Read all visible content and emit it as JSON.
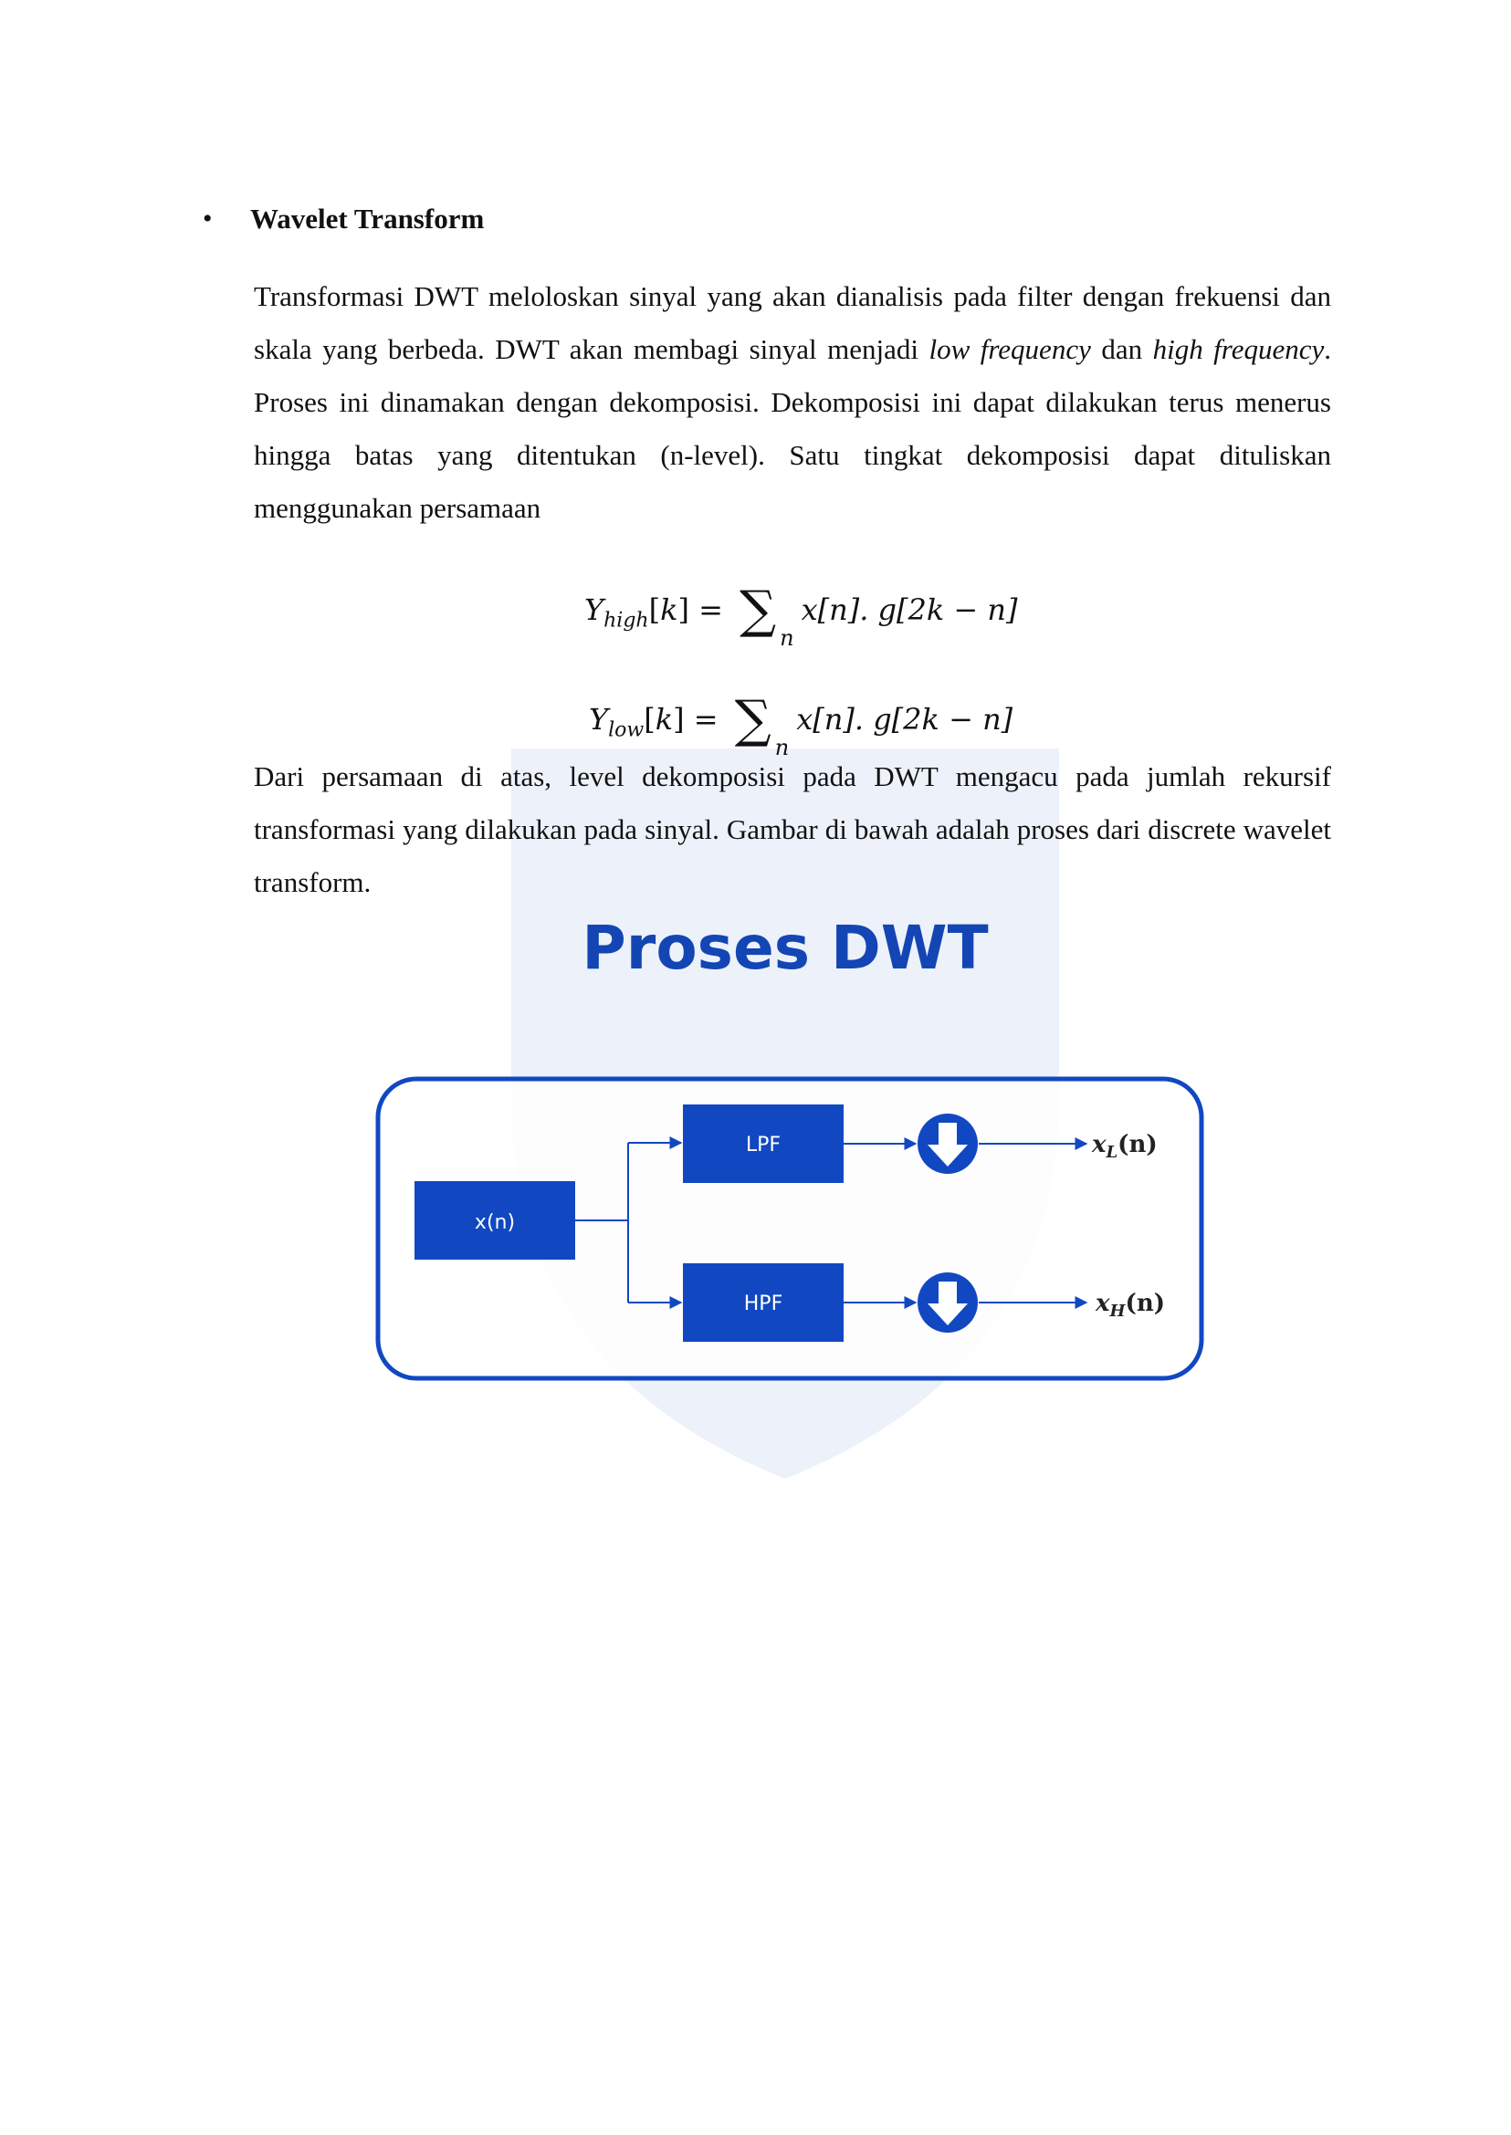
{
  "section": {
    "bullet": "•",
    "heading": "Wavelet Transform"
  },
  "paragraph1": {
    "part1": "Transformasi DWT meloloskan sinyal yang akan dianalisis pada filter dengan frekuensi dan skala yang berbeda. DWT akan membagi sinyal menjadi ",
    "em1": "low frequency",
    "part2": " dan ",
    "em2": "high frequency",
    "part3": ". Proses ini dinamakan dengan dekomposisi. Dekomposisi ini dapat dilakukan terus menerus hingga batas yang ditentukan (n-level). Satu tingkat dekomposisi dapat dituliskan menggunakan persamaan"
  },
  "equations": [
    {
      "lhs": "Y",
      "sub": "high",
      "rhs": "x[n]. g[2k − n]"
    },
    {
      "lhs": "Y",
      "sub": "low",
      "rhs": "x[n]. g[2k − n]"
    }
  ],
  "paragraph2": "Dari persamaan di atas, level dekomposisi pada DWT mengacu pada jumlah rekursif transformasi yang dilakukan pada sinyal. Gambar di bawah adalah proses dari discrete wavelet transform.",
  "figure": {
    "title": "Proses DWT",
    "input_label": "x(n)",
    "lpf_label": "LPF",
    "hpf_label": "HPF",
    "output_low": {
      "base": "x",
      "sub": "L",
      "arg": "(n)"
    },
    "output_high": {
      "base": "x",
      "sub": "H",
      "arg": "(n)"
    },
    "accent_color": "#1148c2"
  }
}
